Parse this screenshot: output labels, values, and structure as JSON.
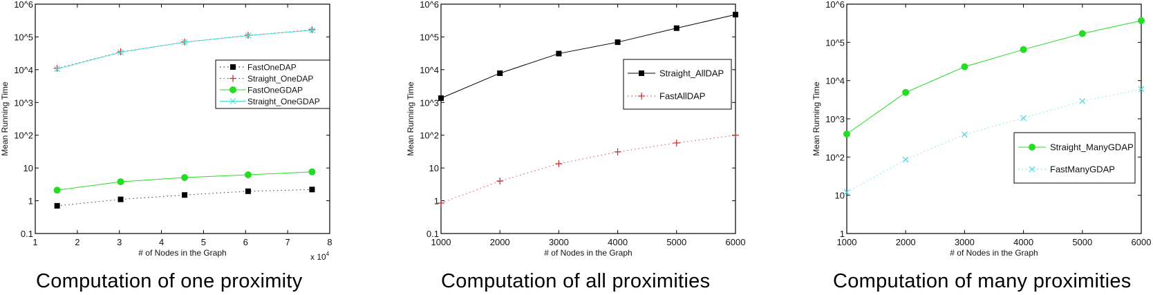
{
  "figure": {
    "panels": [
      {
        "id": "one",
        "caption": "Computation of one proximity"
      },
      {
        "id": "all",
        "caption": "Computation of all proximities"
      },
      {
        "id": "many",
        "caption": "Computation of many proximities"
      }
    ]
  },
  "chart_data": [
    {
      "type": "line",
      "title": "Computation of one proximity",
      "xlabel": "# of Nodes in the Graph",
      "ylabel": "Mean Running Time",
      "x_multiplier_label": "x 10^4",
      "yscale": "log",
      "xlim": [
        1,
        8
      ],
      "ylim": [
        0.1,
        1000000
      ],
      "xticks": [
        "1",
        "2",
        "3",
        "4",
        "5",
        "6",
        "7",
        "8"
      ],
      "yticks": [
        "0.1",
        "1",
        "10",
        "10^2",
        "10^3",
        "10^4",
        "10^5",
        "10^6"
      ],
      "x": [
        1.52,
        3.03,
        4.55,
        6.06,
        7.58
      ],
      "series": [
        {
          "name": "FastOneDAP",
          "color": "#000000",
          "line": "dotted",
          "marker": "square",
          "values": [
            0.7,
            1.1,
            1.5,
            1.95,
            2.2
          ]
        },
        {
          "name": "Straight_OneDAP",
          "color": "#cc2222",
          "line": "dotted",
          "marker": "plus",
          "values": [
            11000,
            35000,
            70000,
            112000,
            166000
          ]
        },
        {
          "name": "FastOneGDAP",
          "color": "#22dd22",
          "line": "solid",
          "marker": "circle",
          "values": [
            2.1,
            3.8,
            5.1,
            6.2,
            7.6
          ]
        },
        {
          "name": "Straight_OneGDAP",
          "color": "#44dddd",
          "line": "solid",
          "marker": "x",
          "values": [
            10500,
            34000,
            69000,
            110000,
            160000
          ]
        }
      ],
      "legend_position": "upper right (inside)",
      "grid": false
    },
    {
      "type": "line",
      "title": "Computation of all proximities",
      "xlabel": "# of Nodes in the Graph",
      "ylabel": "Mean Running Time",
      "yscale": "log",
      "xlim": [
        1000,
        6000
      ],
      "ylim": [
        0.1,
        1000000
      ],
      "xticks": [
        "1000",
        "2000",
        "3000",
        "4000",
        "5000",
        "6000"
      ],
      "yticks": [
        "0.1",
        "1",
        "10",
        "10^2",
        "10^3",
        "10^4",
        "10^5",
        "10^6"
      ],
      "x": [
        1000,
        2000,
        3000,
        4000,
        5000,
        6000
      ],
      "series": [
        {
          "name": "Straight_AllDAP",
          "color": "#000000",
          "line": "solid",
          "marker": "square",
          "values": [
            1350,
            7800,
            31000,
            69000,
            185000,
            480000
          ]
        },
        {
          "name": "FastAllDAP",
          "color": "#cc2222",
          "line": "dotted",
          "marker": "plus",
          "values": [
            0.85,
            4,
            13.5,
            31,
            58,
            100
          ]
        }
      ],
      "legend_position": "right (inside)",
      "grid": false
    },
    {
      "type": "line",
      "title": "Computation of many proximities",
      "xlabel": "# of Nodes in the Graph",
      "ylabel": "Mean Running Time",
      "yscale": "log",
      "xlim": [
        1000,
        6000
      ],
      "ylim": [
        1,
        1000000
      ],
      "xticks": [
        "1000",
        "2000",
        "3000",
        "4000",
        "5000",
        "6000"
      ],
      "yticks": [
        "1",
        "10",
        "10^2",
        "10^3",
        "10^4",
        "10^5",
        "10^6"
      ],
      "x": [
        1000,
        2000,
        3000,
        4000,
        5000,
        6000
      ],
      "series": [
        {
          "name": "Straight_ManyGDAP",
          "color": "#22dd22",
          "line": "solid",
          "marker": "circle",
          "values": [
            400,
            4900,
            23000,
            65000,
            170000,
            370000
          ]
        },
        {
          "name": "FastManyGDAP",
          "color": "#44dddd",
          "line": "dotted",
          "marker": "x",
          "values": [
            12,
            86,
            390,
            1050,
            2900,
            6000
          ]
        }
      ],
      "legend_position": "lower right (inside)",
      "grid": false
    }
  ]
}
